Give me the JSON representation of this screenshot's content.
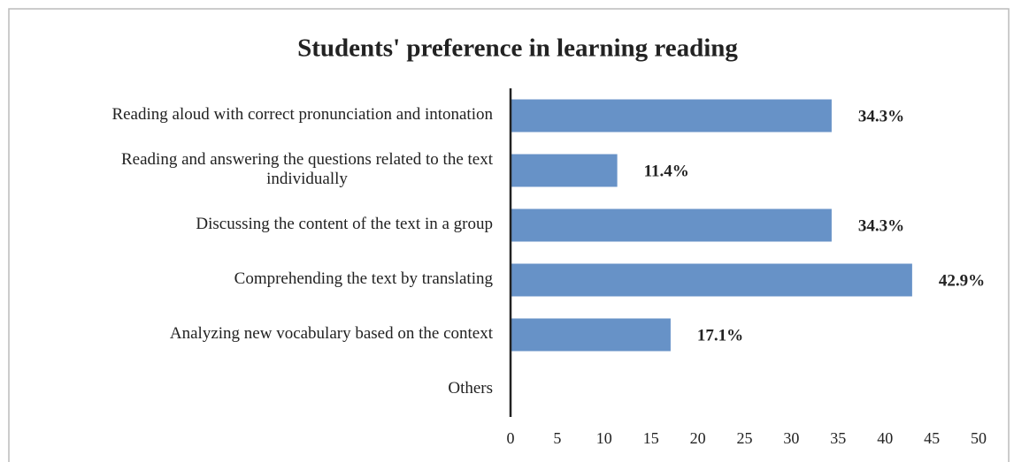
{
  "chart_data": {
    "type": "hbar",
    "title": "Students' preference in learning reading",
    "categories": [
      "Reading aloud with correct pronunciation and intonation",
      "Reading and answering the questions related to the text individually",
      "Discussing the content of the text in a group",
      "Comprehending the text by translating",
      "Analyzing new vocabulary based on the context",
      "Others"
    ],
    "values": [
      34.3,
      11.4,
      34.3,
      42.9,
      17.1,
      0
    ],
    "value_labels": [
      "34.3%",
      "11.4%",
      "34.3%",
      "42.9%",
      "17.1%",
      null
    ],
    "color": "#6792c7",
    "xlim": [
      0,
      50
    ],
    "xticks": [
      0,
      5,
      10,
      15,
      20,
      25,
      30,
      35,
      40,
      45,
      50
    ],
    "grid": false
  }
}
